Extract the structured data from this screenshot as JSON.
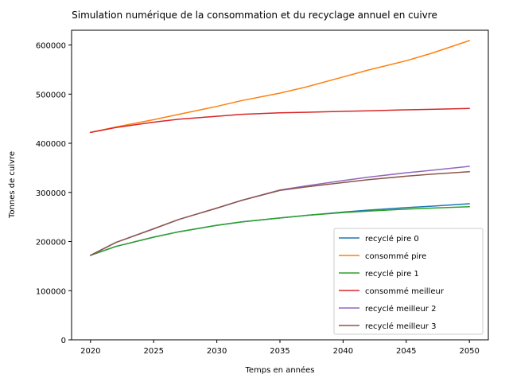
{
  "chart_data": {
    "type": "line",
    "title": "Simulation numérique de la consommation et du recyclage annuel en cuivre",
    "xlabel": "Temps en années",
    "ylabel": "Tonnes de cuivre",
    "xlim": [
      2018.5,
      2051.5
    ],
    "ylim": [
      0,
      630000
    ],
    "xticks": [
      2020,
      2025,
      2030,
      2035,
      2040,
      2045,
      2050
    ],
    "yticks": [
      0,
      100000,
      200000,
      300000,
      400000,
      500000,
      600000
    ],
    "grid": false,
    "legend_position": "lower-right",
    "x": [
      2020,
      2022,
      2025,
      2027,
      2030,
      2032,
      2035,
      2037,
      2040,
      2042,
      2045,
      2047,
      2050
    ],
    "series": [
      {
        "name": "recyclé pire 0",
        "color": "#1f77b4",
        "values": [
          172000,
          190000,
          209000,
          220000,
          233000,
          240000,
          248000,
          253000,
          260000,
          264000,
          269000,
          272000,
          277000
        ]
      },
      {
        "name": "consommé pire",
        "color": "#ff7f0e",
        "values": [
          422000,
          433000,
          448000,
          459000,
          475000,
          487000,
          502000,
          514000,
          535000,
          549000,
          568000,
          583000,
          609000
        ]
      },
      {
        "name": "recyclé pire 1",
        "color": "#2ca02c",
        "values": [
          172000,
          190000,
          209000,
          220000,
          233000,
          240000,
          248000,
          253000,
          259000,
          262000,
          266000,
          268000,
          271000
        ]
      },
      {
        "name": "consommé meilleur",
        "color": "#d62728",
        "values": [
          422000,
          432000,
          443000,
          449000,
          455000,
          459000,
          462000,
          463000,
          465000,
          466000,
          468000,
          469000,
          471000
        ]
      },
      {
        "name": "recyclé meilleur 2",
        "color": "#9467bd",
        "values": [
          172000,
          198000,
          226000,
          245000,
          268000,
          284000,
          305000,
          313000,
          324000,
          331000,
          340000,
          345000,
          353000
        ]
      },
      {
        "name": "recyclé meilleur 3",
        "color": "#8c564b",
        "values": [
          172000,
          198000,
          226000,
          245000,
          268000,
          284000,
          304000,
          311000,
          320000,
          326000,
          333000,
          337000,
          342000
        ]
      }
    ]
  }
}
